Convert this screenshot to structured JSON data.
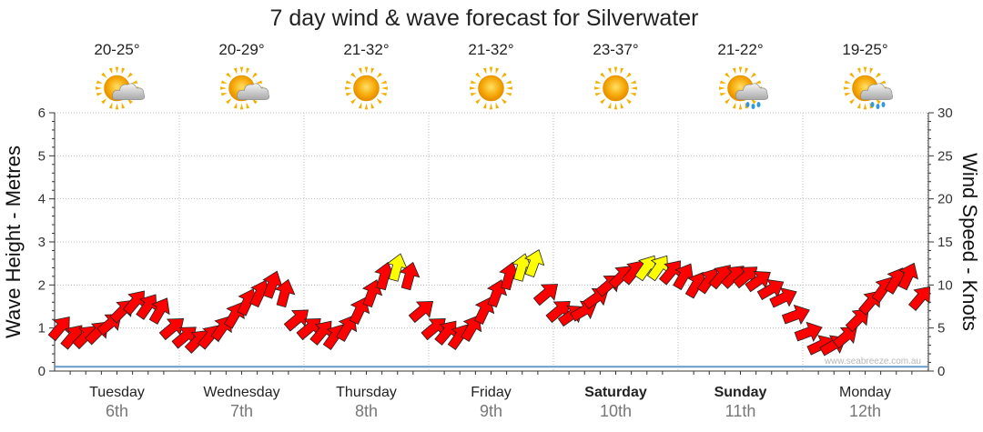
{
  "chart_data": {
    "type": "line",
    "title": "7 day wind & wave forecast for Silverwater",
    "ylabel_left": "Wave Height - Metres",
    "ylabel_right": "Wind Speed - Knots",
    "ylim_left": [
      0,
      6
    ],
    "ylim_right": [
      0,
      30
    ],
    "yticks_left": [
      "0",
      "1",
      "2",
      "3",
      "4",
      "5",
      "6"
    ],
    "yticks_right": [
      "0",
      "5",
      "10",
      "15",
      "20",
      "25",
      "30"
    ],
    "grid": true,
    "days": [
      {
        "day": "Tuesday",
        "date": "6th",
        "temp": "20-25°",
        "weather_icon": "partly-cloudy-icon",
        "bold": false
      },
      {
        "day": "Wednesday",
        "date": "7th",
        "temp": "20-29°",
        "weather_icon": "partly-cloudy-icon",
        "bold": false
      },
      {
        "day": "Thursday",
        "date": "8th",
        "temp": "21-32°",
        "weather_icon": "sunny-icon",
        "bold": false
      },
      {
        "day": "Friday",
        "date": "9th",
        "temp": "21-32°",
        "weather_icon": "sunny-icon",
        "bold": false
      },
      {
        "day": "Saturday",
        "date": "10th",
        "temp": "23-37°",
        "weather_icon": "sunny-icon",
        "bold": true
      },
      {
        "day": "Sunday",
        "date": "11th",
        "temp": "21-22°",
        "weather_icon": "showers-icon",
        "bold": true
      },
      {
        "day": "Monday",
        "date": "12th",
        "temp": "19-25°",
        "weather_icon": "showers-icon",
        "bold": false
      }
    ],
    "series": [
      {
        "name": "Wind Speed",
        "units": "knots",
        "x_day": [
          0.0,
          0.1,
          0.2,
          0.3,
          0.4,
          0.5,
          0.6,
          0.7,
          0.8,
          0.9,
          1.0,
          1.1,
          1.2,
          1.3,
          1.4,
          1.5,
          1.6,
          1.7,
          1.8,
          1.9,
          2.0,
          2.1,
          2.2,
          2.3,
          2.4,
          2.5,
          2.6,
          2.7,
          2.8,
          2.9,
          3.0,
          3.1,
          3.2,
          3.3,
          3.4,
          3.5,
          3.6,
          3.7,
          3.8,
          3.9,
          4.0,
          4.1,
          4.2,
          4.3,
          4.4,
          4.5,
          4.6,
          4.7,
          4.8,
          4.9,
          5.0,
          5.1,
          5.2,
          5.3,
          5.4,
          5.5,
          5.6,
          5.7,
          5.8,
          5.9,
          6.0,
          6.1,
          6.2,
          6.3,
          6.4,
          6.5,
          6.6,
          6.7,
          6.8,
          6.9
        ],
        "values": [
          5,
          4,
          4,
          4.5,
          5.5,
          7,
          8,
          7.5,
          7,
          5,
          4,
          3.5,
          4,
          5,
          6.5,
          8,
          9,
          10,
          9,
          6,
          5,
          4.5,
          4,
          5,
          7,
          9,
          11,
          12,
          11,
          7,
          5,
          4.5,
          4,
          5,
          7,
          9,
          11,
          12,
          12.5,
          9,
          7,
          6.5,
          7,
          8.5,
          10,
          11,
          11.5,
          12,
          12,
          11.5,
          11,
          10,
          10.5,
          11,
          11,
          11,
          10.5,
          9.5,
          8.5,
          6.5,
          4.5,
          3,
          3,
          4,
          6,
          8,
          9.5,
          10.5,
          11,
          8.5
        ],
        "direction_deg": [
          220,
          220,
          225,
          225,
          230,
          225,
          220,
          215,
          210,
          230,
          230,
          225,
          220,
          215,
          210,
          205,
          205,
          200,
          195,
          230,
          230,
          220,
          215,
          210,
          205,
          200,
          195,
          195,
          195,
          230,
          230,
          220,
          215,
          210,
          205,
          200,
          195,
          195,
          200,
          230,
          230,
          235,
          240,
          235,
          230,
          225,
          220,
          215,
          215,
          220,
          210,
          210,
          215,
          220,
          225,
          230,
          235,
          240,
          245,
          250,
          250,
          245,
          240,
          230,
          225,
          220,
          215,
          210,
          205,
          220
        ]
      },
      {
        "name": "Wave Height",
        "units": "m",
        "x_day": [
          0,
          0.25,
          0.5,
          0.75,
          1,
          1.25,
          1.5,
          1.75,
          2,
          2.25,
          2.5,
          2.75,
          3,
          3.25,
          3.5,
          3.75,
          4,
          4.25,
          4.5,
          4.75,
          5,
          5.25,
          5.5,
          5.75,
          6,
          6.25,
          6.5,
          6.75,
          7
        ],
        "values": [
          0.1,
          0.1,
          0.1,
          0.1,
          0.1,
          0.1,
          0.1,
          0.1,
          0.1,
          0.1,
          0.1,
          0.1,
          0.1,
          0.1,
          0.1,
          0.1,
          0.1,
          0.1,
          0.1,
          0.1,
          0.1,
          0.1,
          0.1,
          0.1,
          0.1,
          0.1,
          0.1,
          0.1,
          0.1
        ]
      }
    ]
  },
  "watermark": "www.seabreeze.com.au",
  "colors": {
    "arrow_normal": "#ff0000",
    "arrow_strong": "#ffff00",
    "arrow_outline": "#222222",
    "wave_line": "#6699cc",
    "grid": "#bbbbbb",
    "axis": "#333333"
  }
}
